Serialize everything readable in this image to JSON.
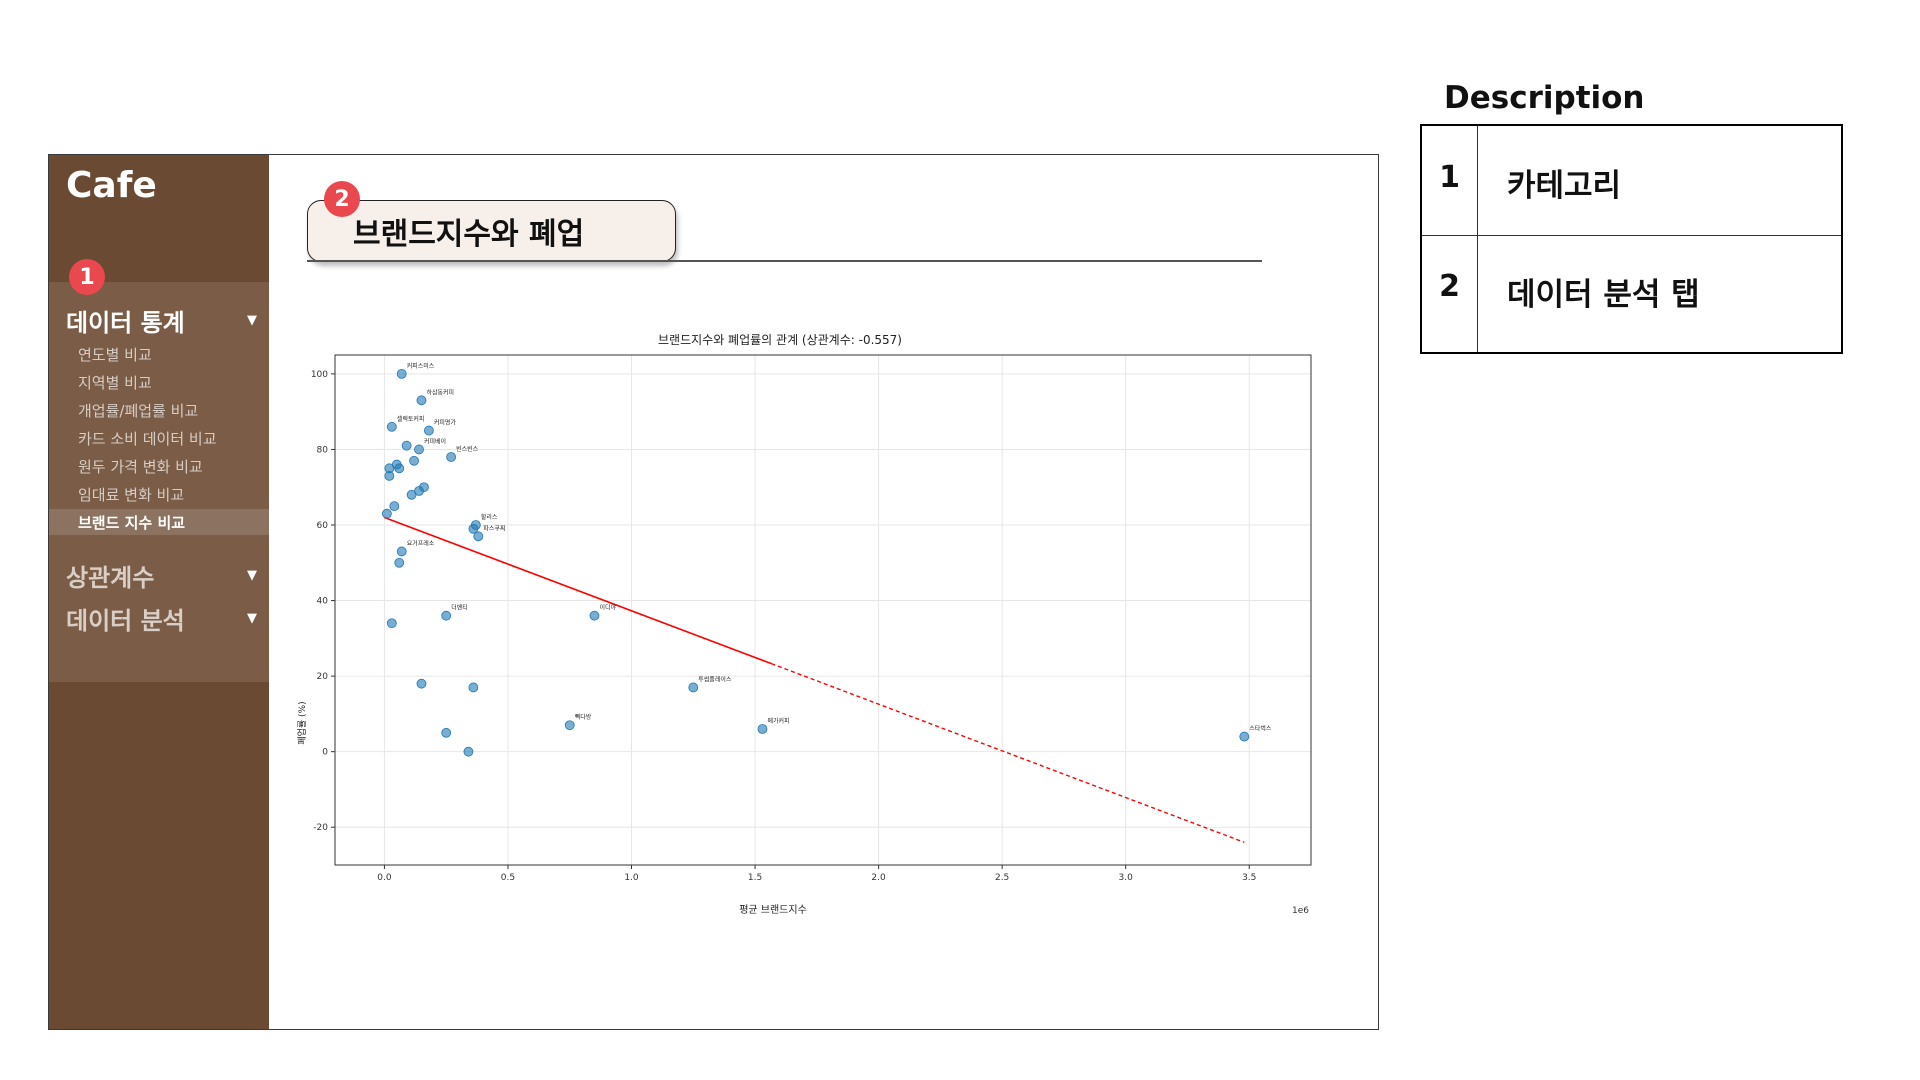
{
  "app": {
    "title": "Cafe"
  },
  "sidebar": {
    "sections": [
      {
        "label": "데이터 통계",
        "expanded": true,
        "items": [
          "연도별 비교",
          "지역별 비교",
          "개업률/폐업률 비교",
          "카드 소비 데이터 비교",
          "원두 가격 변화 비교",
          "임대료 변화 비교",
          "브랜드 지수 비교"
        ],
        "active_item": "브랜드 지수 비교"
      },
      {
        "label": "상관계수",
        "expanded": false
      },
      {
        "label": "데이터 분석",
        "expanded": false
      }
    ]
  },
  "badges": {
    "one": "1",
    "two": "2"
  },
  "tab": {
    "title": "브랜드지수와 폐업"
  },
  "description": {
    "heading": "Description",
    "rows": [
      {
        "num": "1",
        "label": "카테고리"
      },
      {
        "num": "2",
        "label": "데이터 분석 탭"
      }
    ]
  },
  "colors": {
    "sidebar": "#6b4a33",
    "badge": "#e8484e",
    "point": "#1f77b4",
    "regression": "#ff0000"
  },
  "chart_data": {
    "type": "scatter",
    "title": "브랜드지수와 폐업률의 관계 (상관계수: -0.557)",
    "xlabel": "평균 브랜드지수",
    "ylabel": "폐업률 (%)",
    "x_offset_label": "1e6",
    "xlim": [
      -0.2,
      3.75
    ],
    "ylim": [
      -30,
      105
    ],
    "xticks": [
      0.0,
      0.5,
      1.0,
      1.5,
      2.0,
      2.5,
      3.0,
      3.5
    ],
    "xtick_labels": [
      "0.0",
      "0.5",
      "1.0",
      "1.5",
      "2.0",
      "2.5",
      "3.0",
      "3.5"
    ],
    "yticks": [
      -20,
      0,
      20,
      40,
      60,
      80,
      100
    ],
    "grid": true,
    "points": [
      {
        "x": 0.07,
        "y": 100,
        "label": "커피스미스"
      },
      {
        "x": 0.15,
        "y": 93,
        "label": "하삼동커피"
      },
      {
        "x": 0.03,
        "y": 86,
        "label": "셀렉토커피"
      },
      {
        "x": 0.18,
        "y": 85,
        "label": "커피명가"
      },
      {
        "x": 0.09,
        "y": 81,
        "label": ""
      },
      {
        "x": 0.14,
        "y": 80,
        "label": "커피베이"
      },
      {
        "x": 0.27,
        "y": 78,
        "label": "빈스빈스"
      },
      {
        "x": 0.05,
        "y": 76,
        "label": ""
      },
      {
        "x": 0.02,
        "y": 75,
        "label": ""
      },
      {
        "x": 0.06,
        "y": 75,
        "label": ""
      },
      {
        "x": 0.12,
        "y": 77,
        "label": ""
      },
      {
        "x": 0.02,
        "y": 73,
        "label": ""
      },
      {
        "x": 0.16,
        "y": 70,
        "label": ""
      },
      {
        "x": 0.14,
        "y": 69,
        "label": ""
      },
      {
        "x": 0.11,
        "y": 68,
        "label": ""
      },
      {
        "x": 0.04,
        "y": 65,
        "label": ""
      },
      {
        "x": 0.01,
        "y": 63,
        "label": ""
      },
      {
        "x": 0.37,
        "y": 60,
        "label": "할리스"
      },
      {
        "x": 0.36,
        "y": 59,
        "label": ""
      },
      {
        "x": 0.38,
        "y": 57,
        "label": "파스쿠찌"
      },
      {
        "x": 0.07,
        "y": 53,
        "label": "요거프레소"
      },
      {
        "x": 0.06,
        "y": 50,
        "label": ""
      },
      {
        "x": 0.85,
        "y": 36,
        "label": "이디야"
      },
      {
        "x": 0.25,
        "y": 36,
        "label": "더벤티"
      },
      {
        "x": 0.03,
        "y": 34,
        "label": ""
      },
      {
        "x": 0.15,
        "y": 18,
        "label": ""
      },
      {
        "x": 0.36,
        "y": 17,
        "label": ""
      },
      {
        "x": 1.25,
        "y": 17,
        "label": "투썸플레이스"
      },
      {
        "x": 0.75,
        "y": 7,
        "label": "빽다방"
      },
      {
        "x": 1.53,
        "y": 6,
        "label": "메가커피"
      },
      {
        "x": 3.48,
        "y": 4,
        "label": "스타벅스"
      },
      {
        "x": 0.25,
        "y": 5,
        "label": ""
      },
      {
        "x": 0.34,
        "y": 0,
        "label": ""
      }
    ],
    "regression": {
      "x1": 0.0,
      "y1": 62,
      "x2": 3.48,
      "y2": -24
    }
  }
}
